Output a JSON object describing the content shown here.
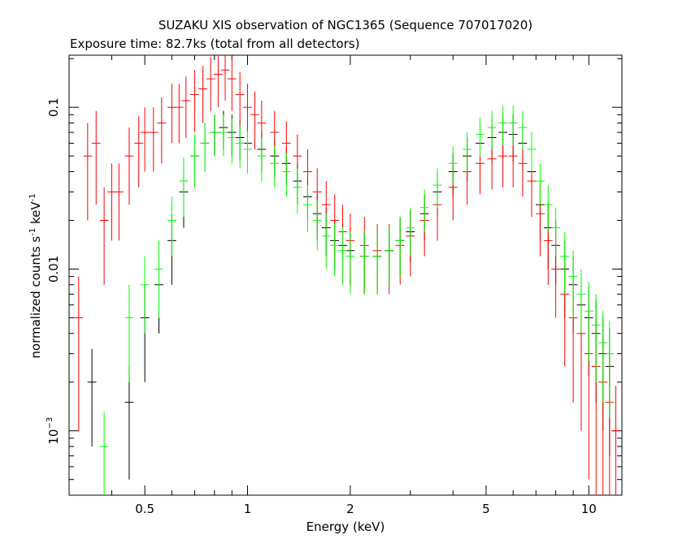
{
  "chart_data": {
    "type": "scatter",
    "title": "SUZAKU XIS observation of NGC1365 (Sequence 707017020)",
    "subtitle": "Exposure time: 82.7ks (total from all detectors)",
    "xlabel": "Energy (keV)",
    "ylabel_parts": [
      "normalized counts s",
      "-1",
      " keV",
      "-1"
    ],
    "x_scale": "log",
    "y_scale": "log",
    "xlim": [
      0.3,
      12.5
    ],
    "ylim": [
      0.0004,
      0.21
    ],
    "x_ticks": [
      {
        "value": 0.5,
        "label": "0.5"
      },
      {
        "value": 1,
        "label": "1"
      },
      {
        "value": 2,
        "label": "2"
      },
      {
        "value": 5,
        "label": "5"
      },
      {
        "value": 10,
        "label": "10"
      }
    ],
    "y_ticks": [
      {
        "value": 0.1,
        "label": "0.1"
      },
      {
        "value": 0.01,
        "label": "0.01"
      },
      {
        "value": 0.001,
        "label": "10",
        "sup": "−3"
      }
    ],
    "grid": false,
    "legend": "none",
    "series_colors": [
      "#000000",
      "#ff0000",
      "#00ff00"
    ],
    "series": [
      {
        "color": "#000000",
        "x": [
          0.35,
          0.45,
          0.5,
          0.55,
          0.6,
          0.65,
          0.7,
          0.75,
          0.8,
          0.85,
          0.9,
          0.95,
          1.0,
          1.1,
          1.2,
          1.3,
          1.4,
          1.5,
          1.6,
          1.7,
          1.8,
          1.9,
          2.0,
          2.2,
          2.4,
          2.6,
          2.8,
          3.0,
          3.3,
          3.6,
          4.0,
          4.4,
          4.8,
          5.2,
          5.6,
          6.0,
          6.4,
          6.8,
          7.2,
          7.6,
          8.0,
          8.5,
          9.0,
          9.5,
          10.0,
          10.5,
          11.0,
          11.5
        ],
        "y": [
          0.002,
          0.0015,
          0.005,
          0.008,
          0.015,
          0.03,
          0.05,
          0.06,
          0.07,
          0.075,
          0.07,
          0.065,
          0.06,
          0.055,
          0.05,
          0.045,
          0.035,
          0.028,
          0.022,
          0.018,
          0.015,
          0.014,
          0.013,
          0.012,
          0.012,
          0.013,
          0.015,
          0.017,
          0.022,
          0.03,
          0.04,
          0.05,
          0.06,
          0.065,
          0.07,
          0.068,
          0.06,
          0.04,
          0.025,
          0.018,
          0.014,
          0.01,
          0.008,
          0.006,
          0.005,
          0.004,
          0.003,
          0.0025
        ],
        "yerr": [
          0.0012,
          0.001,
          0.003,
          0.004,
          0.007,
          0.012,
          0.018,
          0.02,
          0.02,
          0.02,
          0.02,
          0.018,
          0.016,
          0.015,
          0.013,
          0.012,
          0.01,
          0.008,
          0.007,
          0.006,
          0.005,
          0.005,
          0.005,
          0.005,
          0.005,
          0.005,
          0.006,
          0.006,
          0.007,
          0.009,
          0.012,
          0.015,
          0.018,
          0.02,
          0.022,
          0.022,
          0.02,
          0.015,
          0.01,
          0.008,
          0.006,
          0.005,
          0.004,
          0.003,
          0.0028,
          0.0025,
          0.002,
          0.0018
        ]
      },
      {
        "color": "#ff0000",
        "x": [
          0.32,
          0.34,
          0.36,
          0.38,
          0.4,
          0.42,
          0.45,
          0.48,
          0.5,
          0.53,
          0.56,
          0.6,
          0.63,
          0.66,
          0.7,
          0.74,
          0.78,
          0.82,
          0.86,
          0.9,
          0.95,
          1.0,
          1.05,
          1.1,
          1.2,
          1.3,
          1.4,
          1.5,
          1.6,
          1.7,
          1.8,
          1.9,
          2.0,
          2.2,
          2.4,
          2.6,
          2.8,
          3.0,
          3.3,
          3.6,
          4.0,
          4.4,
          4.8,
          5.2,
          5.6,
          6.0,
          6.4,
          6.8,
          7.2,
          7.6,
          8.0,
          8.5,
          9.0,
          9.5,
          10.0,
          10.5,
          11.0,
          11.5,
          12.0
        ],
        "y": [
          0.005,
          0.05,
          0.06,
          0.02,
          0.03,
          0.03,
          0.05,
          0.06,
          0.07,
          0.07,
          0.08,
          0.1,
          0.1,
          0.11,
          0.12,
          0.13,
          0.15,
          0.16,
          0.17,
          0.15,
          0.12,
          0.1,
          0.09,
          0.08,
          0.07,
          0.06,
          0.05,
          0.04,
          0.03,
          0.025,
          0.02,
          0.017,
          0.015,
          0.014,
          0.013,
          0.013,
          0.014,
          0.016,
          0.02,
          0.025,
          0.032,
          0.04,
          0.045,
          0.048,
          0.05,
          0.05,
          0.045,
          0.035,
          0.022,
          0.015,
          0.01,
          0.007,
          0.005,
          0.004,
          0.003,
          0.0025,
          0.002,
          0.0015,
          0.001
        ],
        "yerr": [
          0.004,
          0.03,
          0.035,
          0.012,
          0.015,
          0.015,
          0.025,
          0.028,
          0.03,
          0.03,
          0.035,
          0.04,
          0.04,
          0.045,
          0.05,
          0.05,
          0.055,
          0.06,
          0.06,
          0.055,
          0.045,
          0.04,
          0.035,
          0.03,
          0.025,
          0.022,
          0.018,
          0.015,
          0.012,
          0.01,
          0.009,
          0.008,
          0.007,
          0.007,
          0.006,
          0.006,
          0.006,
          0.007,
          0.008,
          0.01,
          0.012,
          0.015,
          0.016,
          0.017,
          0.018,
          0.018,
          0.017,
          0.014,
          0.01,
          0.007,
          0.005,
          0.0045,
          0.0035,
          0.003,
          0.0025,
          0.0022,
          0.0018,
          0.0014,
          0.0009
        ]
      },
      {
        "color": "#00ff00",
        "x": [
          0.38,
          0.45,
          0.5,
          0.55,
          0.6,
          0.65,
          0.7,
          0.75,
          0.8,
          0.85,
          0.9,
          0.95,
          1.0,
          1.1,
          1.2,
          1.3,
          1.4,
          1.5,
          1.6,
          1.7,
          1.8,
          1.9,
          2.0,
          2.2,
          2.4,
          2.6,
          2.8,
          3.0,
          3.3,
          3.6,
          4.0,
          4.4,
          4.8,
          5.2,
          5.6,
          6.0,
          6.4,
          6.8,
          7.2,
          7.6,
          8.0,
          8.5,
          9.0,
          9.5,
          10.0,
          10.5,
          11.0,
          11.5
        ],
        "y": [
          0.0008,
          0.005,
          0.008,
          0.01,
          0.02,
          0.035,
          0.05,
          0.06,
          0.07,
          0.07,
          0.065,
          0.06,
          0.055,
          0.05,
          0.045,
          0.04,
          0.032,
          0.025,
          0.02,
          0.016,
          0.014,
          0.013,
          0.012,
          0.012,
          0.012,
          0.013,
          0.015,
          0.018,
          0.024,
          0.033,
          0.045,
          0.055,
          0.068,
          0.075,
          0.08,
          0.08,
          0.075,
          0.055,
          0.035,
          0.025,
          0.018,
          0.012,
          0.009,
          0.007,
          0.0055,
          0.0045,
          0.0035,
          0.003
        ],
        "yerr": [
          0.0005,
          0.003,
          0.004,
          0.005,
          0.008,
          0.014,
          0.018,
          0.02,
          0.02,
          0.02,
          0.02,
          0.018,
          0.016,
          0.015,
          0.013,
          0.012,
          0.01,
          0.008,
          0.007,
          0.006,
          0.005,
          0.005,
          0.005,
          0.005,
          0.005,
          0.005,
          0.006,
          0.006,
          0.007,
          0.009,
          0.012,
          0.015,
          0.018,
          0.02,
          0.022,
          0.022,
          0.02,
          0.015,
          0.01,
          0.008,
          0.006,
          0.005,
          0.004,
          0.003,
          0.0028,
          0.0025,
          0.002,
          0.0018
        ]
      }
    ]
  }
}
